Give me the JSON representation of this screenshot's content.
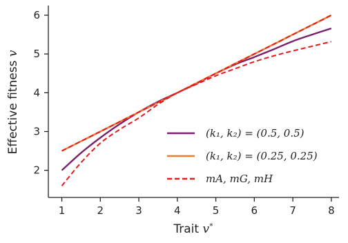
{
  "chart_data": {
    "type": "line",
    "title": "",
    "xlabel": "Trait v*",
    "ylabel": "Effective fitness v",
    "xlim": [
      0.65,
      8.2
    ],
    "ylim": [
      1.3,
      6.25
    ],
    "xticks": [
      1,
      2,
      3,
      4,
      5,
      6,
      7,
      8
    ],
    "yticks": [
      2,
      3,
      4,
      5,
      6
    ],
    "grid": false,
    "legend_position": "bottom-right",
    "x": [
      1,
      1.5,
      2,
      2.5,
      3,
      3.5,
      4,
      4.5,
      5,
      5.5,
      6,
      6.5,
      7,
      7.5,
      8
    ],
    "series": [
      {
        "name": "(k1, k2) = (0.5, 0.5)",
        "color": "#7a1e6e",
        "style": "solid",
        "values": [
          2.0,
          2.45,
          2.84,
          3.19,
          3.5,
          3.77,
          4.0,
          4.24,
          4.5,
          4.73,
          4.92,
          5.12,
          5.33,
          5.5,
          5.66
        ]
      },
      {
        "name": "(k1, k2) = (0.25, 0.25)",
        "color": "#f07a2e",
        "style": "solid",
        "values": [
          2.5,
          2.75,
          3.0,
          3.25,
          3.5,
          3.75,
          4.0,
          4.25,
          4.5,
          4.75,
          5.0,
          5.25,
          5.5,
          5.75,
          6.0
        ]
      },
      {
        "name": "mA, mG, mH",
        "color": "#e41a1c",
        "style": "dashed",
        "values": [
          1.6,
          2.2,
          2.7,
          3.05,
          3.35,
          3.7,
          4.0,
          4.22,
          4.44,
          4.62,
          4.8,
          4.95,
          5.08,
          5.2,
          5.32
        ]
      },
      {
        "name": "",
        "color": "#e41a1c",
        "style": "dashed",
        "values": [
          2.5,
          2.75,
          3.0,
          3.25,
          3.5,
          3.75,
          4.0,
          4.25,
          4.5,
          4.75,
          5.0,
          5.25,
          5.5,
          5.75,
          6.0
        ]
      }
    ],
    "legend": [
      {
        "text": "(k₁, k₂) = (0.5, 0.5)",
        "color": "#7a1e6e",
        "style": "solid"
      },
      {
        "text": "(k₁, k₂) = (0.25, 0.25)",
        "color": "#f07a2e",
        "style": "solid"
      },
      {
        "text": "mA, mG, mH",
        "color": "#e41a1c",
        "style": "dashed"
      }
    ]
  }
}
